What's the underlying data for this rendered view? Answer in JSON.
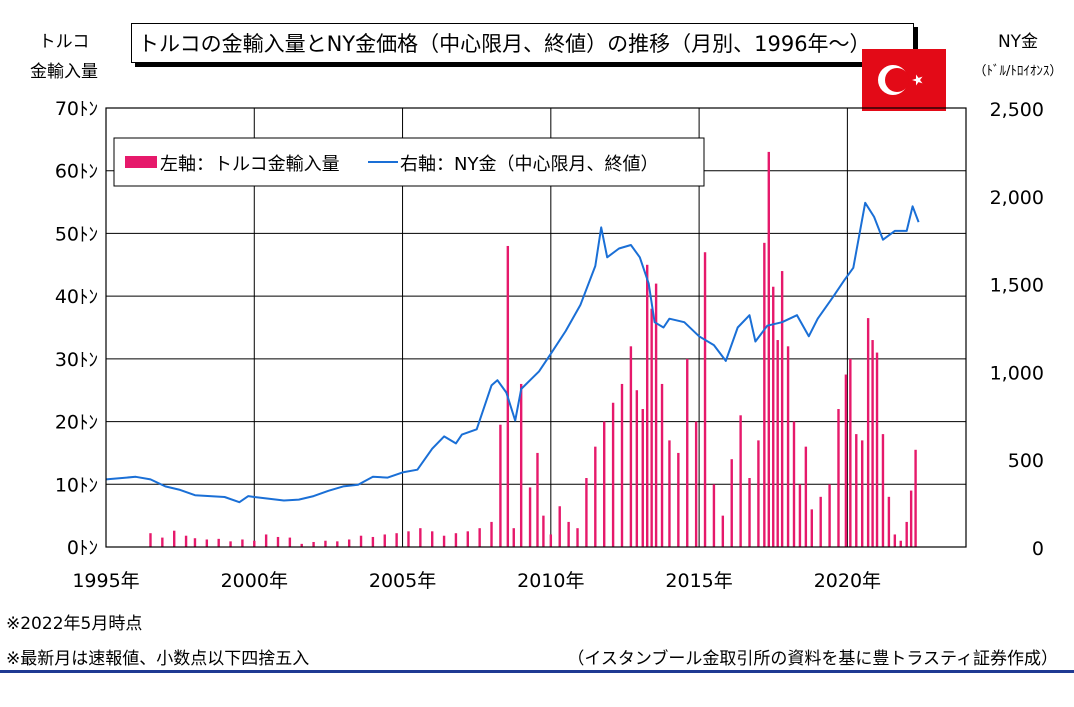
{
  "chart_data": {
    "type": "bar+line",
    "title": "トルコの金輸入量とNY金価格（中心限月、終値）の推移（月別、1996年～）",
    "left_axis_label": [
      "トルコ",
      "金輸入量"
    ],
    "right_axis_label": [
      "NY金",
      "（ﾄﾞﾙ/ﾄﾛｲｵﾝｽ）"
    ],
    "left_ylim": [
      0,
      70
    ],
    "right_ylim": [
      0,
      2500
    ],
    "left_ticks": [
      "0ﾄﾝ",
      "10ﾄﾝ",
      "20ﾄﾝ",
      "30ﾄﾝ",
      "40ﾄﾝ",
      "50ﾄﾝ",
      "60ﾄﾝ",
      "70ﾄﾝ"
    ],
    "right_ticks": [
      "0",
      "500",
      "1,000",
      "1,500",
      "2,000",
      "2,500"
    ],
    "x_ticks": [
      "1995年",
      "2000年",
      "2005年",
      "2010年",
      "2015年",
      "2020年"
    ],
    "xlim": [
      1995,
      2024
    ],
    "grid": true,
    "legend_position": "top-left",
    "bar_series": {
      "name": "左軸：トルコ金輸入量",
      "color": "#e6196b",
      "x": [
        1996.5,
        1996.9,
        1997.3,
        1997.7,
        1998.0,
        1998.4,
        1998.8,
        1999.2,
        1999.6,
        2000.0,
        2000.4,
        2000.8,
        2001.2,
        2001.6,
        2002.0,
        2002.4,
        2002.8,
        2003.2,
        2003.6,
        2004.0,
        2004.4,
        2004.8,
        2005.2,
        2005.6,
        2006.0,
        2006.4,
        2006.8,
        2007.2,
        2007.6,
        2008.0,
        2008.3,
        2008.55,
        2008.75,
        2009.0,
        2009.3,
        2009.55,
        2009.75,
        2010.0,
        2010.3,
        2010.6,
        2010.9,
        2011.2,
        2011.5,
        2011.8,
        2012.1,
        2012.4,
        2012.7,
        2012.9,
        2013.1,
        2013.25,
        2013.4,
        2013.55,
        2013.75,
        2014.0,
        2014.3,
        2014.6,
        2014.9,
        2015.2,
        2015.5,
        2015.8,
        2016.1,
        2016.4,
        2016.7,
        2017.0,
        2017.2,
        2017.35,
        2017.5,
        2017.65,
        2017.8,
        2018.0,
        2018.2,
        2018.4,
        2018.6,
        2018.8,
        2019.1,
        2019.4,
        2019.7,
        2019.95,
        2020.1,
        2020.3,
        2020.5,
        2020.7,
        2020.85,
        2021.0,
        2021.2,
        2021.4,
        2021.6,
        2021.8,
        2022.0,
        2022.15,
        2022.3
      ],
      "values": [
        2.2,
        1.5,
        2.6,
        1.8,
        1.4,
        1.2,
        1.3,
        0.9,
        1.2,
        1.0,
        2.0,
        1.6,
        1.5,
        0.5,
        0.8,
        1.0,
        0.9,
        1.2,
        1.8,
        1.6,
        2.0,
        2.2,
        2.5,
        3.0,
        2.5,
        1.8,
        2.2,
        2.5,
        3.0,
        4.0,
        19.5,
        48.0,
        3.0,
        26.0,
        9.5,
        15.0,
        5.0,
        2.0,
        6.5,
        4.0,
        3.0,
        11.0,
        16.0,
        20.0,
        23.0,
        26.0,
        32.0,
        25.0,
        22.0,
        45.0,
        38.0,
        42.0,
        26.0,
        17.0,
        15.0,
        30.0,
        20.0,
        47.0,
        10.0,
        5.0,
        14.0,
        21.0,
        11.0,
        17.0,
        48.5,
        63.0,
        41.5,
        33.0,
        44.0,
        32.0,
        20.0,
        10.0,
        16.0,
        6.0,
        8.0,
        10.0,
        22.0,
        27.5,
        30.0,
        18.0,
        17.0,
        36.5,
        33.0,
        31.0,
        18.0,
        8.0,
        2.0,
        1.0,
        4.0,
        9.0,
        15.5
      ]
    },
    "line_series": {
      "name": "右軸：NY金（中心限月、終値）",
      "color": "#1a6fd6",
      "x": [
        1995.0,
        1996.0,
        1996.5,
        1997.0,
        1997.5,
        1998.0,
        1998.5,
        1999.0,
        1999.5,
        1999.8,
        2000.0,
        2000.5,
        2001.0,
        2001.5,
        2002.0,
        2002.5,
        2003.0,
        2003.5,
        2004.0,
        2004.5,
        2005.0,
        2005.5,
        2006.0,
        2006.4,
        2006.8,
        2007.0,
        2007.5,
        2008.0,
        2008.2,
        2008.5,
        2008.8,
        2009.0,
        2009.3,
        2009.6,
        2010.0,
        2010.5,
        2011.0,
        2011.5,
        2011.7,
        2011.9,
        2012.3,
        2012.7,
        2013.0,
        2013.3,
        2013.5,
        2013.8,
        2014.0,
        2014.5,
        2015.0,
        2015.5,
        2015.9,
        2016.3,
        2016.7,
        2016.9,
        2017.3,
        2017.8,
        2018.3,
        2018.7,
        2019.0,
        2019.5,
        2019.9,
        2020.2,
        2020.6,
        2020.9,
        2021.2,
        2021.6,
        2022.0,
        2022.2,
        2022.4
      ],
      "values": [
        385,
        400,
        385,
        345,
        325,
        295,
        290,
        285,
        255,
        290,
        285,
        275,
        265,
        270,
        290,
        320,
        345,
        355,
        400,
        395,
        425,
        440,
        560,
        630,
        590,
        640,
        670,
        920,
        950,
        880,
        720,
        900,
        950,
        1000,
        1100,
        1230,
        1380,
        1600,
        1820,
        1650,
        1700,
        1720,
        1650,
        1500,
        1280,
        1250,
        1300,
        1280,
        1200,
        1150,
        1060,
        1250,
        1320,
        1170,
        1260,
        1280,
        1320,
        1200,
        1300,
        1420,
        1520,
        1590,
        1960,
        1880,
        1750,
        1800,
        1800,
        1940,
        1850
      ]
    },
    "notes": [
      "※2022年5月時点",
      "※最新月は速報値、小数点以下四捨五入"
    ],
    "source": "（イスタンブール金取引所の資料を基に豊トラスティ証券作成）"
  }
}
